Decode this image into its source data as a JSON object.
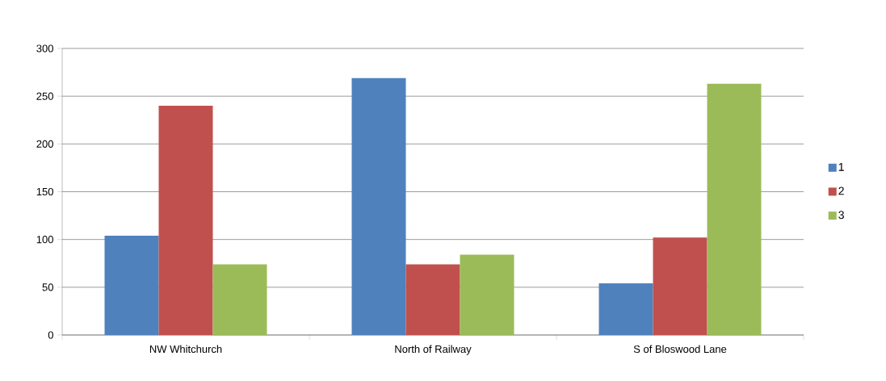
{
  "chart_data": {
    "type": "bar",
    "categories": [
      "NW Whitchurch",
      "North of Railway",
      "S of Bloswood Lane"
    ],
    "series": [
      {
        "name": "1",
        "color": "#4f81bd",
        "values": [
          104,
          269,
          54
        ]
      },
      {
        "name": "2",
        "color": "#c0504d",
        "values": [
          240,
          74,
          102
        ]
      },
      {
        "name": "3",
        "color": "#9bbb59",
        "values": [
          74,
          84,
          263
        ]
      }
    ],
    "ylim": [
      0,
      300
    ],
    "yticks": [
      0,
      50,
      100,
      150,
      200,
      250,
      300
    ],
    "grid": "y",
    "legend": "right"
  }
}
